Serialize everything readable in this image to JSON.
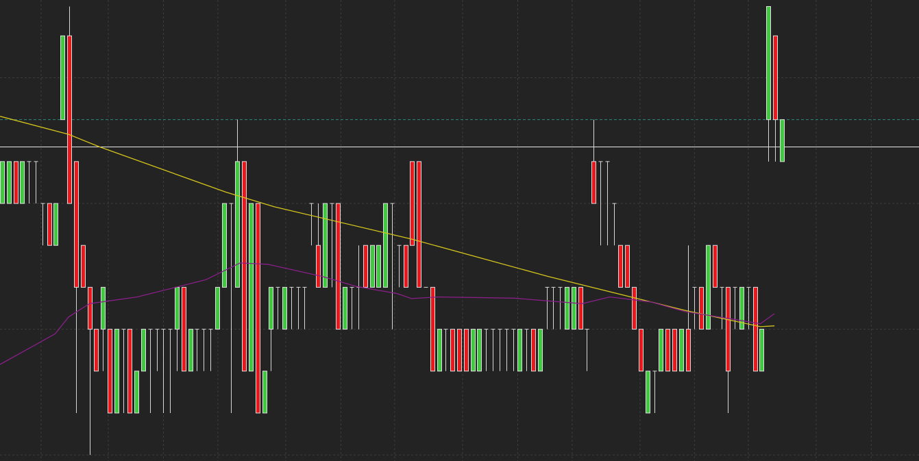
{
  "chart_data": {
    "type": "candlestick",
    "xlim": [
      -0.306,
      136.4
    ],
    "ylim": [
      -0.145,
      10.855
    ],
    "xticks": [
      5.8,
      15.8,
      24,
      32.1,
      42.2,
      50.4,
      58.4,
      68.5,
      76.7,
      84.8,
      94.9,
      103,
      111,
      121.1,
      129.3
    ],
    "yticks": [
      0,
      3,
      6,
      9
    ],
    "grid": true,
    "up_color": "#41c841",
    "down_color": "#e8191c",
    "wick_color": "#d8d8d8",
    "candles": [
      [
        6,
        7,
        6,
        7
      ],
      [
        6,
        7,
        6,
        7
      ],
      [
        7,
        7,
        6,
        6
      ],
      [
        6,
        7,
        6,
        7
      ],
      [
        7,
        7,
        6,
        7
      ],
      [
        7,
        7,
        6,
        7
      ],
      [
        6,
        6,
        5,
        6
      ],
      [
        6,
        6,
        5,
        5
      ],
      [
        5,
        6,
        5,
        6
      ],
      [
        8,
        10,
        8,
        10
      ],
      [
        10,
        10.7,
        6,
        6
      ],
      [
        7,
        7,
        1,
        4
      ],
      [
        5,
        5,
        4,
        4
      ],
      [
        4,
        4,
        0,
        3
      ],
      [
        3,
        3,
        2,
        2
      ],
      [
        3,
        4,
        2,
        4
      ],
      [
        3,
        3,
        1,
        1
      ],
      [
        1,
        3,
        1,
        3
      ],
      [
        3,
        3,
        1,
        3
      ],
      [
        3,
        3,
        1,
        1
      ],
      [
        1,
        2,
        1,
        2
      ],
      [
        2,
        3,
        2,
        3
      ],
      [
        3,
        3,
        1,
        3
      ],
      [
        3,
        3,
        2,
        3
      ],
      [
        3,
        3,
        1,
        3
      ],
      [
        3,
        3,
        1,
        3
      ],
      [
        3,
        4,
        2,
        4
      ],
      [
        4,
        4,
        2,
        2
      ],
      [
        2,
        3,
        2,
        3
      ],
      [
        3,
        3,
        2,
        3
      ],
      [
        3,
        3,
        2,
        3
      ],
      [
        3,
        3,
        2,
        3
      ],
      [
        3,
        4,
        3,
        4
      ],
      [
        4,
        6,
        4,
        6
      ],
      [
        6,
        6,
        1,
        6
      ],
      [
        4,
        8,
        4,
        7
      ],
      [
        7,
        7,
        2,
        2
      ],
      [
        2,
        6,
        2,
        6
      ],
      [
        6,
        6,
        1,
        1
      ],
      [
        1,
        2,
        1,
        2
      ],
      [
        3,
        4,
        2,
        4
      ],
      [
        4,
        4,
        3,
        4
      ],
      [
        3,
        4,
        3,
        4
      ],
      [
        4,
        4,
        3,
        4
      ],
      [
        4,
        4,
        3,
        4
      ],
      [
        4,
        4,
        3,
        4
      ],
      [
        6,
        6,
        5,
        6
      ],
      [
        5,
        6,
        4,
        4
      ],
      [
        4,
        6,
        4,
        6
      ],
      [
        6,
        6,
        4,
        6
      ],
      [
        6,
        6,
        3,
        3
      ],
      [
        3,
        4,
        3,
        4
      ],
      [
        4,
        4,
        3,
        4
      ],
      [
        4,
        5,
        3,
        4
      ],
      [
        5,
        5,
        4,
        4
      ],
      [
        4,
        5,
        4,
        5
      ],
      [
        4,
        5,
        4,
        5
      ],
      [
        4,
        6,
        4,
        6
      ],
      [
        6,
        6,
        3,
        6
      ],
      [
        5,
        5,
        4,
        5
      ],
      [
        5,
        5,
        4,
        4
      ],
      [
        7,
        7,
        5,
        5
      ],
      [
        7,
        7,
        4,
        4
      ],
      [
        4,
        4,
        4,
        4
      ],
      [
        4,
        4,
        2,
        2
      ],
      [
        2,
        3,
        2,
        3
      ],
      [
        3,
        3,
        2,
        3
      ],
      [
        3,
        3,
        2,
        2
      ],
      [
        3,
        3,
        2,
        2
      ],
      [
        3,
        3,
        2,
        2
      ],
      [
        2,
        3,
        2,
        3
      ],
      [
        2,
        3,
        2,
        3
      ],
      [
        3,
        3,
        2,
        3
      ],
      [
        3,
        3,
        2,
        3
      ],
      [
        3,
        3,
        2,
        3
      ],
      [
        3,
        3,
        2,
        3
      ],
      [
        3,
        3,
        2,
        3
      ],
      [
        2,
        3,
        2,
        3
      ],
      [
        3,
        3,
        2,
        3
      ],
      [
        3,
        3,
        2,
        2
      ],
      [
        2,
        3,
        2,
        3
      ],
      [
        4,
        4,
        3,
        4
      ],
      [
        4,
        4,
        3,
        4
      ],
      [
        4,
        4,
        3,
        4
      ],
      [
        3,
        4,
        3,
        4
      ],
      [
        3,
        4,
        3,
        4
      ],
      [
        4,
        4,
        3,
        3
      ],
      [
        3,
        3,
        2,
        3
      ],
      [
        7,
        8,
        6,
        6
      ],
      [
        7,
        7,
        5,
        7
      ],
      [
        7,
        7,
        5,
        7
      ],
      [
        6,
        6,
        5,
        6
      ],
      [
        5,
        5,
        4,
        4
      ],
      [
        5,
        5,
        4,
        4
      ],
      [
        4,
        4,
        3,
        3
      ],
      [
        3,
        3,
        2,
        2
      ],
      [
        1,
        2,
        1,
        2
      ],
      [
        2,
        2,
        1,
        2
      ],
      [
        2,
        3,
        2,
        3
      ],
      [
        3,
        3,
        2,
        2
      ],
      [
        3,
        3,
        2,
        2
      ],
      [
        2,
        3,
        2,
        3
      ],
      [
        3,
        5,
        2,
        2
      ],
      [
        4,
        4,
        3,
        4
      ],
      [
        4,
        4,
        3,
        3
      ],
      [
        3,
        5,
        3,
        5
      ],
      [
        5,
        5,
        4,
        4
      ],
      [
        4,
        4,
        3,
        4
      ],
      [
        4,
        4,
        1,
        2
      ],
      [
        4,
        4,
        3,
        4
      ],
      [
        3,
        4,
        3,
        4
      ],
      [
        4,
        4,
        3,
        4
      ],
      [
        4,
        4,
        2,
        2
      ],
      [
        2,
        3,
        2,
        3
      ],
      [
        8,
        10.7,
        7,
        10.7
      ],
      [
        10,
        10,
        7,
        8
      ],
      [
        7,
        8,
        7,
        8
      ]
    ],
    "overlays": [
      {
        "color": "#d4c51c",
        "x": [
          -0.3,
          9.9,
          14.5,
          33.3,
          40.5,
          60.9,
          81.2,
          101.6,
          112.8,
          114.9
        ],
        "values": [
          8.08,
          7.65,
          7.35,
          6.27,
          5.92,
          5.15,
          4.26,
          3.45,
          3.06,
          3.08
        ]
      },
      {
        "color": "#8a1f8a",
        "x": [
          -0.3,
          7.9,
          9.9,
          13,
          20.1,
          30.3,
          35.4,
          39.5,
          47.6,
          52.7,
          58.8,
          60.9,
          64.9,
          76.2,
          86.3,
          90.4,
          96.5,
          101.6,
          109.8,
          112.8,
          114.9
        ],
        "values": [
          2.16,
          2.89,
          3.29,
          3.61,
          3.77,
          4.18,
          4.58,
          4.55,
          4.26,
          4.02,
          3.85,
          3.73,
          3.77,
          3.74,
          3.61,
          3.77,
          3.65,
          3.42,
          3.21,
          3.13,
          3.37
        ]
      }
    ],
    "hlines": [
      {
        "value": 7.35,
        "color": "#e8e8e8",
        "dash": false
      },
      {
        "value": 8,
        "color": "#2f8a7a",
        "dash": true
      }
    ]
  }
}
